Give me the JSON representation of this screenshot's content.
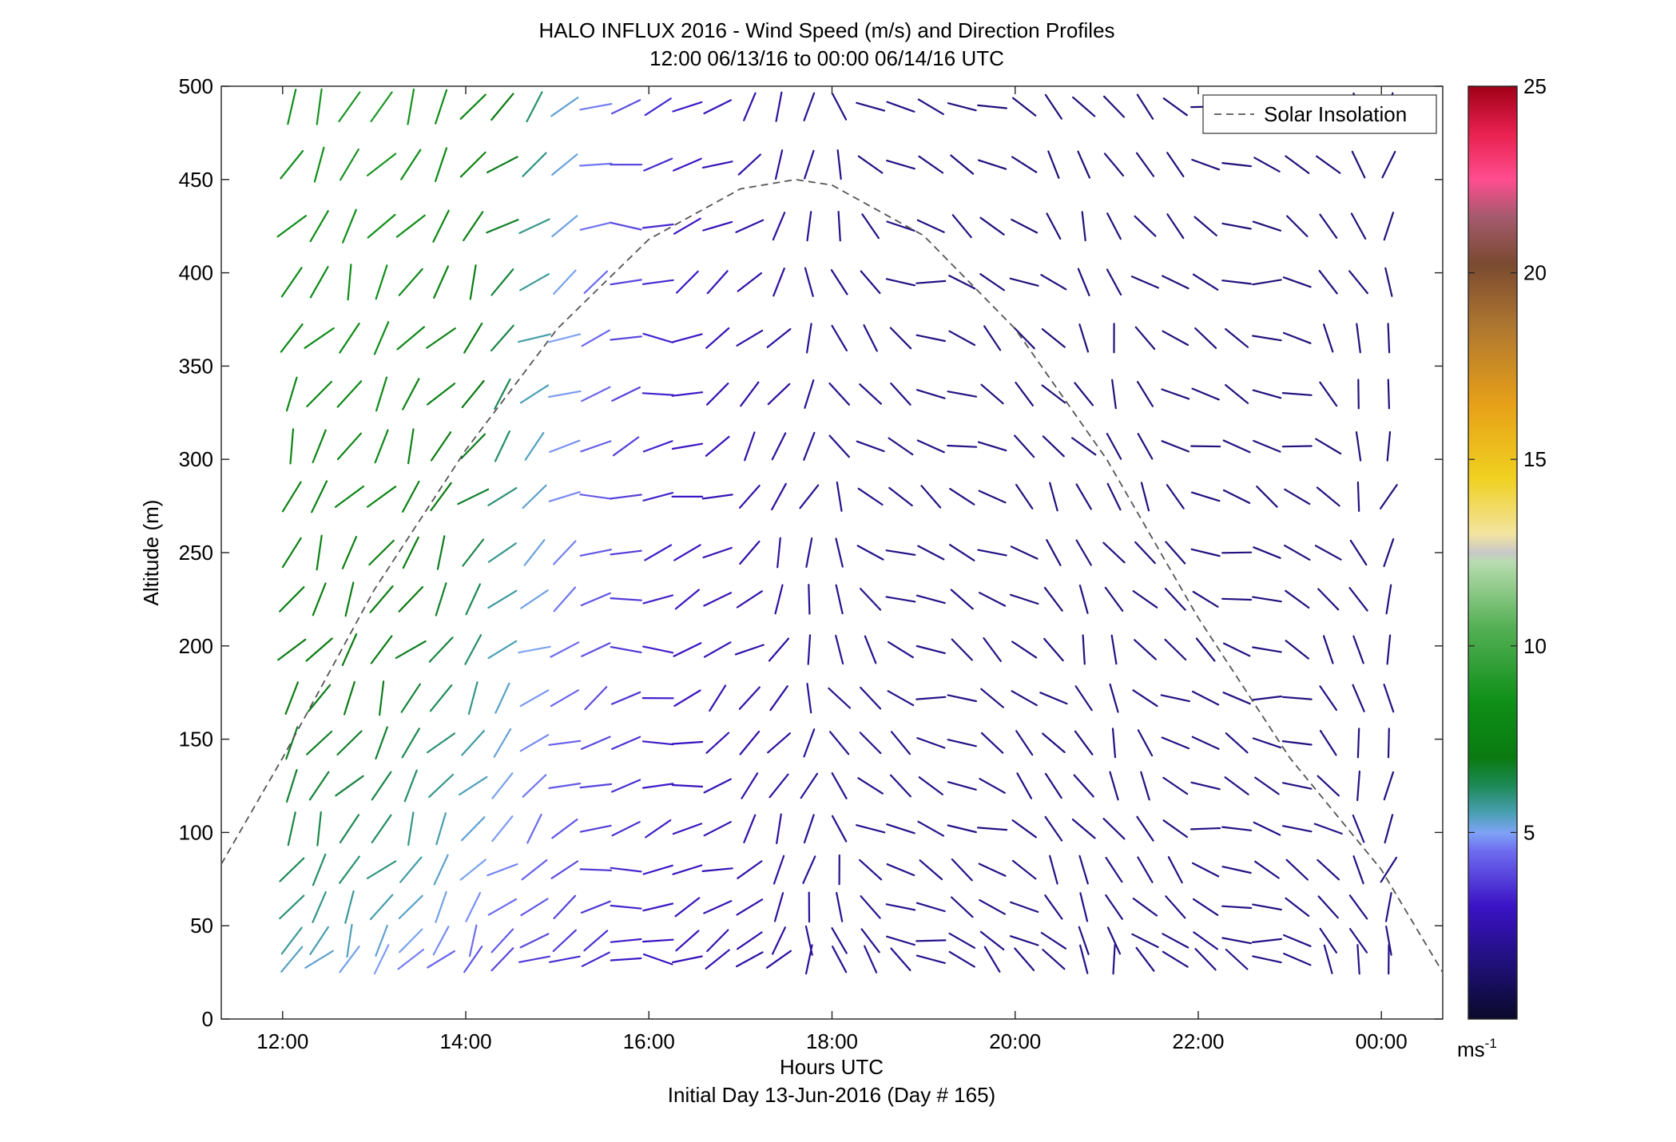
{
  "chart_data": {
    "type": "quiver",
    "title": "HALO INFLUX 2016 - Wind Speed (m/s) and Direction Profiles",
    "subtitle": "12:00 06/13/16 to 00:00 06/14/16  UTC",
    "xlabel": "Hours UTC",
    "footer": "Initial Day 13-Jun-2016 (Day # 165)",
    "ylabel": "Altitude (m)",
    "xlim": [
      11.33,
      24.67
    ],
    "ylim": [
      0,
      500
    ],
    "xticks": [
      12,
      14,
      16,
      18,
      20,
      22,
      24
    ],
    "xtick_labels": [
      "12:00",
      "14:00",
      "16:00",
      "18:00",
      "20:00",
      "22:00",
      "00:00"
    ],
    "yticks": [
      0,
      50,
      100,
      150,
      200,
      250,
      300,
      350,
      400,
      450,
      500
    ],
    "ytick_labels": [
      "0",
      "50",
      "100",
      "150",
      "200",
      "250",
      "300",
      "350",
      "400",
      "450",
      "500"
    ],
    "colorbar": {
      "ticks": [
        5,
        10,
        15,
        20,
        25
      ],
      "tick_labels": [
        "5",
        "10",
        "15",
        "20",
        "25"
      ],
      "range": [
        0,
        25
      ],
      "unit_base": "ms",
      "unit_exp": "-1"
    },
    "legend": {
      "label": "Solar Insolation",
      "position": "top-right"
    },
    "solar_insolation": {
      "x": [
        11.33,
        12,
        13,
        14,
        15,
        16,
        17,
        17.6,
        18,
        19,
        20,
        21,
        22,
        23,
        24,
        24.67
      ],
      "y": [
        83,
        140,
        230,
        305,
        370,
        418,
        445,
        450,
        447,
        420,
        370,
        300,
        215,
        140,
        80,
        25
      ]
    },
    "time_columns": [
      12.1,
      12.4,
      12.73,
      13.08,
      13.4,
      13.73,
      14.08,
      14.4,
      14.75,
      15.08,
      15.42,
      15.75,
      16.1,
      16.42,
      16.75,
      17.1,
      17.42,
      17.75,
      18.08,
      18.42,
      18.75,
      19.08,
      19.42,
      19.75,
      20.1,
      20.42,
      20.75,
      21.08,
      21.42,
      21.75,
      22.08,
      22.42,
      22.75,
      23.08,
      23.42,
      23.75,
      24.08
    ],
    "altitude_levels": [
      32,
      42,
      60,
      80,
      102,
      125,
      148,
      172,
      198,
      225,
      250,
      280,
      307,
      335,
      365,
      395,
      425,
      458,
      489
    ],
    "speed_keyframes": {
      "times": [
        12.1,
        13.0,
        14.0,
        15.0,
        16.0,
        17.0,
        18.0,
        20.0,
        24.1
      ],
      "speed_low_alt": [
        5.5,
        5.0,
        4.2,
        3.5,
        3.0,
        2.5,
        2.0,
        1.8,
        1.8
      ],
      "speed_high_alt": [
        8.5,
        9.0,
        8.0,
        5.5,
        3.5,
        2.5,
        1.8,
        1.5,
        1.5
      ]
    },
    "direction_keyframes": {
      "times": [
        12.1,
        14.0,
        15.0,
        16.0,
        17.0,
        17.8,
        18.2,
        19.0,
        20.0,
        21.0,
        22.0,
        23.0,
        24.1
      ],
      "direction_deg": [
        300,
        305,
        330,
        355,
        320,
        280,
        230,
        200,
        215,
        250,
        205,
        195,
        280
      ]
    }
  }
}
